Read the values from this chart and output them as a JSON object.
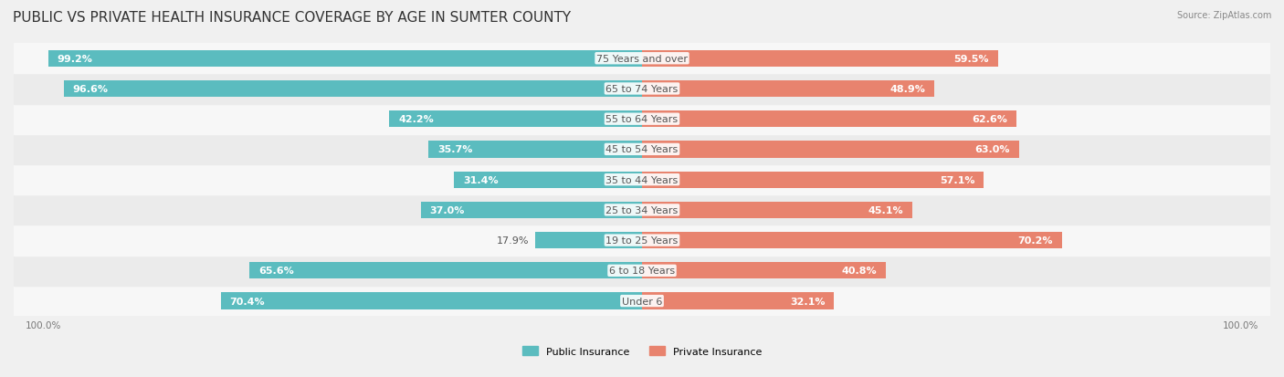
{
  "title": "PUBLIC VS PRIVATE HEALTH INSURANCE COVERAGE BY AGE IN SUMTER COUNTY",
  "source": "Source: ZipAtlas.com",
  "categories": [
    "Under 6",
    "6 to 18 Years",
    "19 to 25 Years",
    "25 to 34 Years",
    "35 to 44 Years",
    "45 to 54 Years",
    "55 to 64 Years",
    "65 to 74 Years",
    "75 Years and over"
  ],
  "public_values": [
    70.4,
    65.6,
    17.9,
    37.0,
    31.4,
    35.7,
    42.2,
    96.6,
    99.2
  ],
  "private_values": [
    32.1,
    40.8,
    70.2,
    45.1,
    57.1,
    63.0,
    62.6,
    48.9,
    59.5
  ],
  "public_color": "#5bbcbf",
  "private_color": "#e8836e",
  "bg_color": "#f0f0f0",
  "row_bg_light": "#f7f7f7",
  "row_bg_dark": "#ebebeb",
  "bar_height": 0.55,
  "title_fontsize": 11,
  "label_fontsize": 8,
  "legend_fontsize": 8,
  "axis_label_fontsize": 7.5
}
